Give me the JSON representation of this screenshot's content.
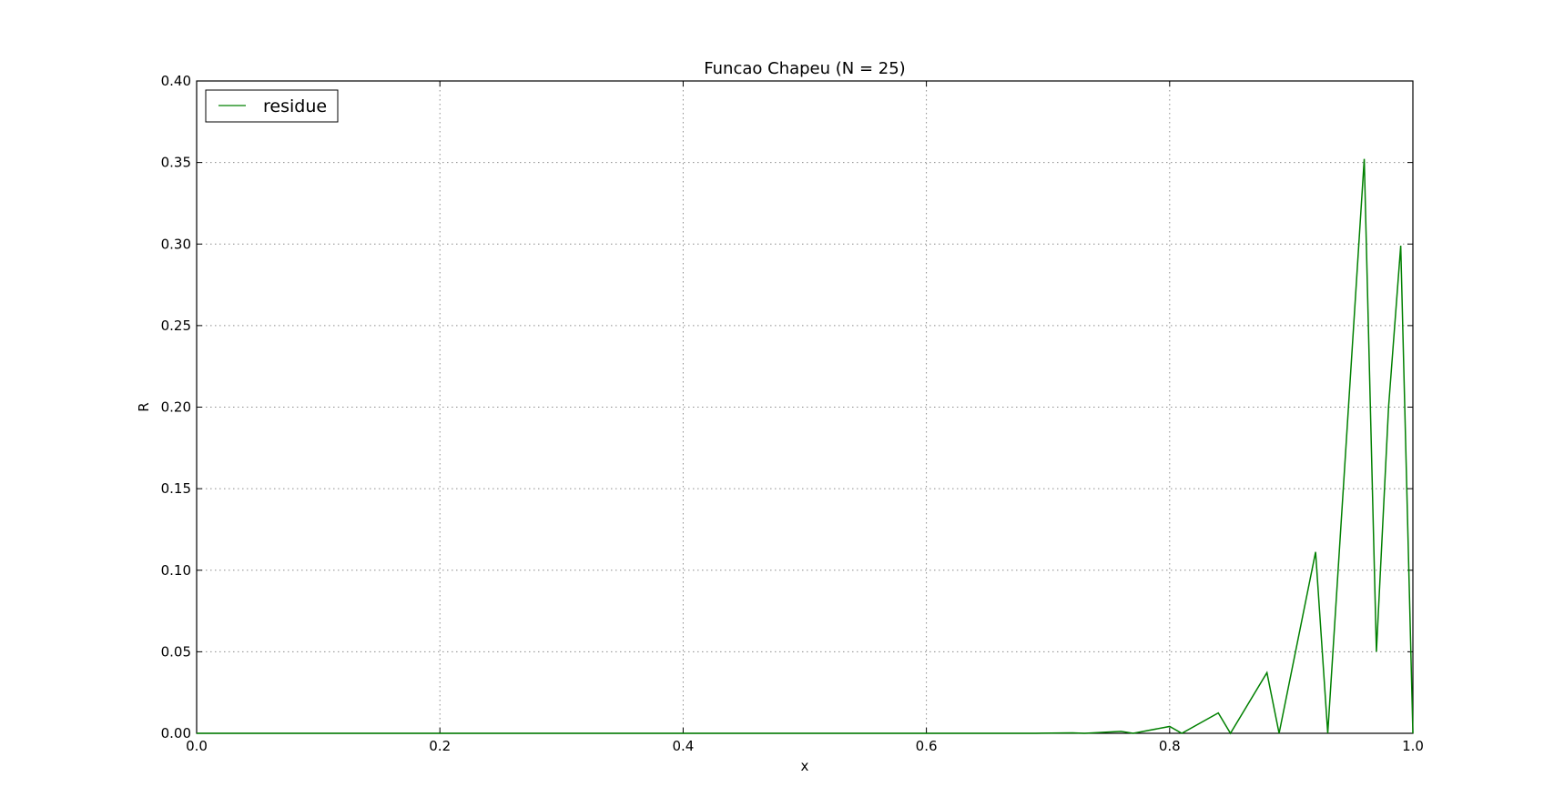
{
  "chart_data": {
    "type": "line",
    "title": "Funcao Chapeu (N = 25)",
    "xlabel": "x",
    "ylabel": "R",
    "xlim": [
      0.0,
      1.0
    ],
    "ylim": [
      0.0,
      0.4
    ],
    "xticks": [
      "0.0",
      "0.2",
      "0.4",
      "0.6",
      "0.8",
      "1.0"
    ],
    "yticks": [
      "0.00",
      "0.05",
      "0.10",
      "0.15",
      "0.20",
      "0.25",
      "0.30",
      "0.35",
      "0.40"
    ],
    "grid": true,
    "legend_position": "top-left",
    "series": [
      {
        "name": "residue",
        "color": "#008000",
        "x": [
          0.0,
          0.69,
          0.72,
          0.73,
          0.76,
          0.77,
          0.8,
          0.81,
          0.84,
          0.85,
          0.88,
          0.89,
          0.92,
          0.93,
          0.96,
          0.97,
          0.98,
          0.99,
          1.0
        ],
        "y": [
          0.0,
          0.0,
          0.0003,
          0.0,
          0.0012,
          0.0,
          0.0042,
          0.0,
          0.0125,
          0.0,
          0.0372,
          0.0,
          0.1112,
          0.0,
          0.3522,
          0.05,
          0.2,
          0.299,
          0.0
        ]
      }
    ]
  }
}
